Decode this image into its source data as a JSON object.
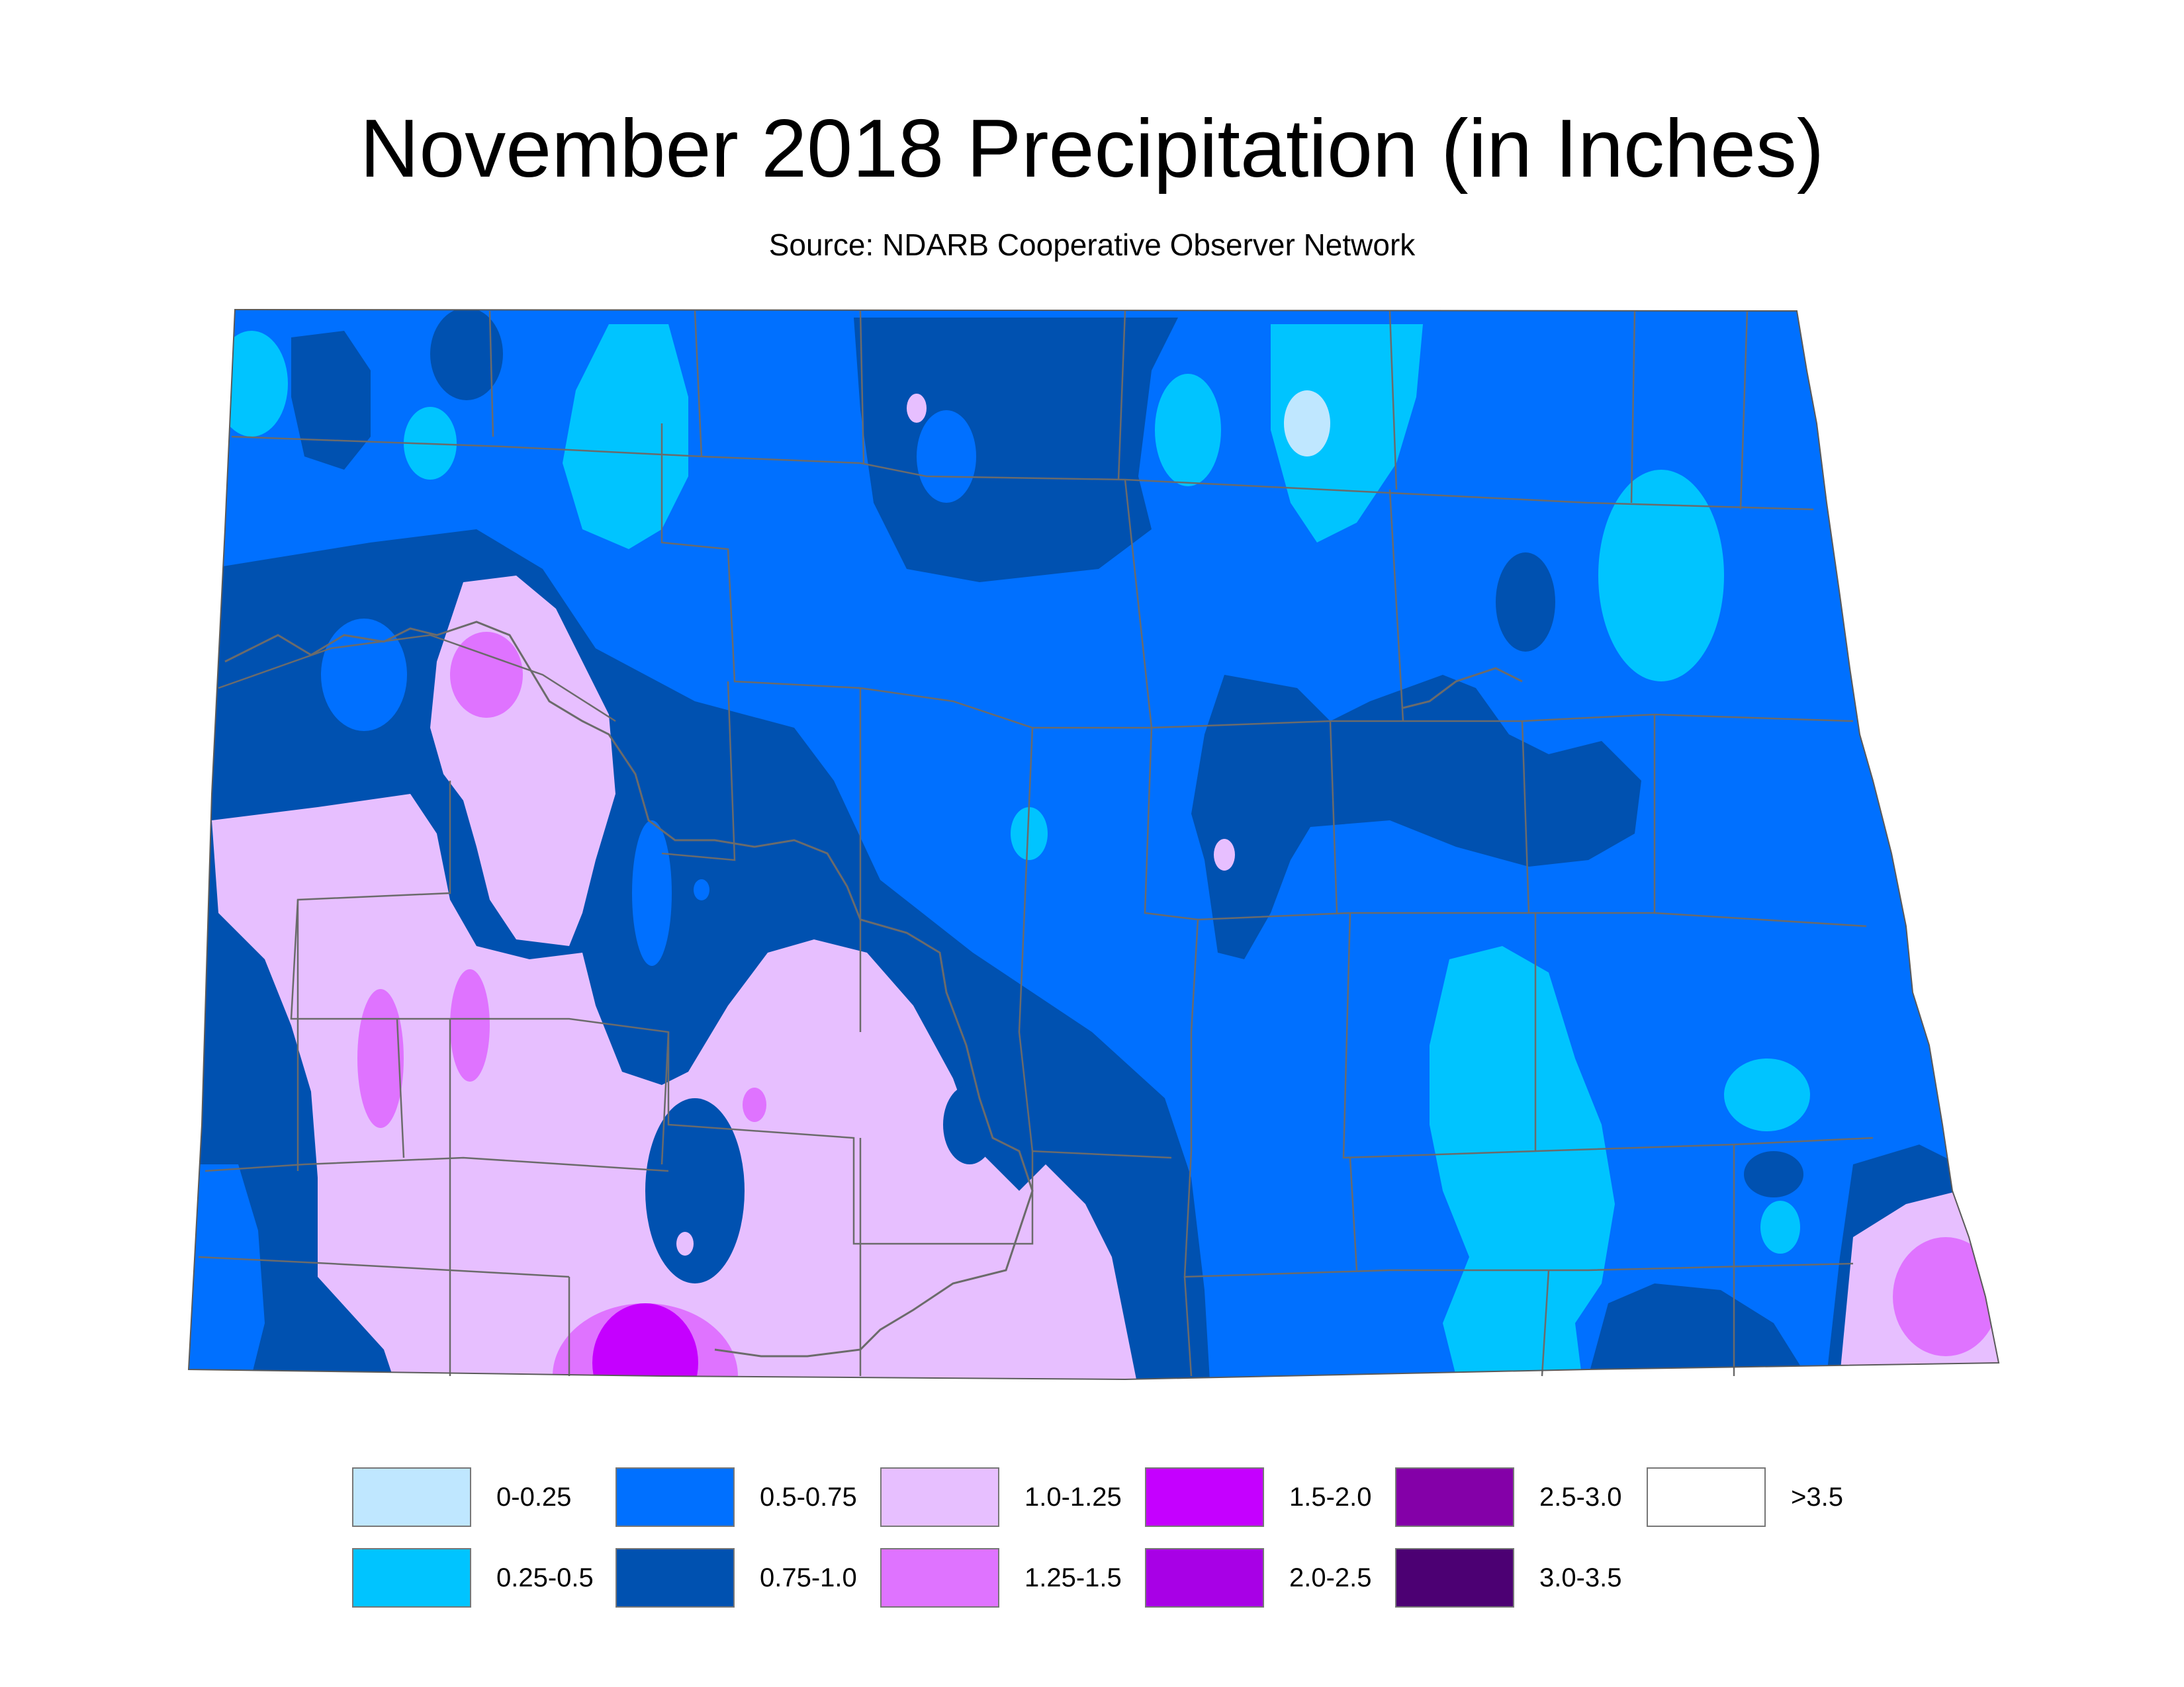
{
  "title": "November 2018 Precipitation (in Inches)",
  "subtitle": "Source: NDARB Cooperative Observer Network",
  "legend": [
    {
      "label": "0-0.25",
      "color": "#bfe7ff"
    },
    {
      "label": "0.25-0.5",
      "color": "#00c4ff"
    },
    {
      "label": "0.5-0.75",
      "color": "#0070ff"
    },
    {
      "label": "0.75-1.0",
      "color": "#0051b0"
    },
    {
      "label": "1.0-1.25",
      "color": "#e7bfff"
    },
    {
      "label": "1.25-1.5",
      "color": "#df73ff"
    },
    {
      "label": "1.5-2.0",
      "color": "#c500ff"
    },
    {
      "label": "2.0-2.5",
      "color": "#a800e6"
    },
    {
      "label": "2.5-3.0",
      "color": "#8400a8"
    },
    {
      "label": "3.0-3.5",
      "color": "#4c0073"
    },
    {
      "label": ">3.5",
      "color": "#ffffff"
    }
  ]
}
